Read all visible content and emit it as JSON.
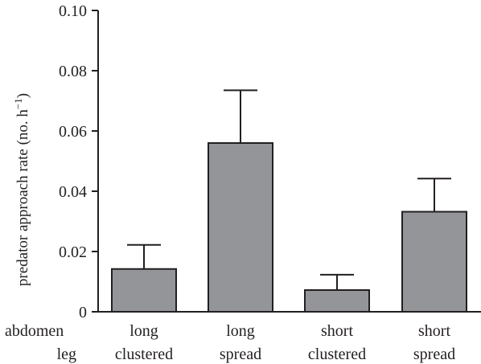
{
  "chart_data": {
    "type": "bar",
    "ylabel_main": "predator approach rate (no. h",
    "ylabel_sup": "−1",
    "ylabel_close": ")",
    "ylim": [
      0,
      0.1
    ],
    "yticks": [
      "0",
      "0.02",
      "0.04",
      "0.06",
      "0.08",
      "0.10"
    ],
    "ytick_values": [
      0,
      0.02,
      0.04,
      0.06,
      0.08,
      0.1
    ],
    "row_labels": {
      "abdomen": "abdomen",
      "leg": "leg"
    },
    "categories": [
      {
        "abdomen": "long",
        "leg": "clustered"
      },
      {
        "abdomen": "long",
        "leg": "spread"
      },
      {
        "abdomen": "short",
        "leg": "clustered"
      },
      {
        "abdomen": "short",
        "leg": "spread"
      }
    ],
    "values": [
      0.0142,
      0.056,
      0.0072,
      0.0332
    ],
    "error_upper": [
      0.0222,
      0.0735,
      0.0123,
      0.0442
    ],
    "bar_color": "#939598",
    "ink_color": "#231f20",
    "grid": false,
    "legend": "none"
  }
}
